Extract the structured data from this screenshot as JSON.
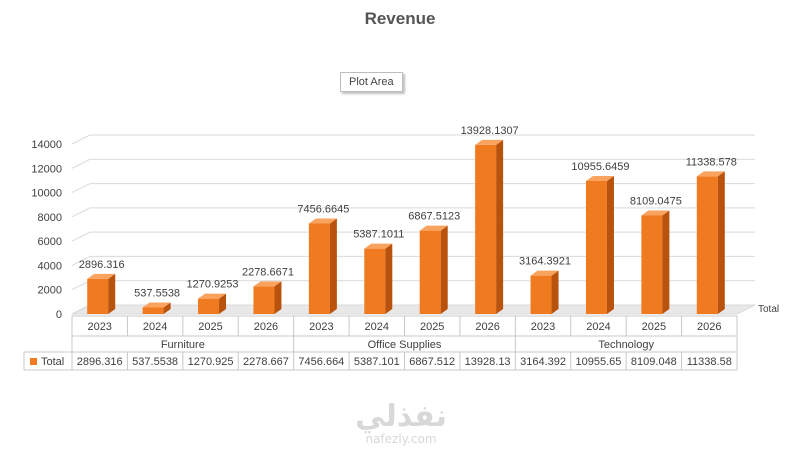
{
  "chart_data": {
    "type": "bar",
    "title": "Revenue",
    "tooltip": "Plot Area",
    "legend_label": "Total",
    "series_name": "Total",
    "ylim": [
      0,
      14000
    ],
    "yticks": [
      "0",
      "2000",
      "4000",
      "6000",
      "8000",
      "10000",
      "12000",
      "14000"
    ],
    "groups": [
      {
        "name": "Furniture",
        "years": [
          "2023",
          "2024",
          "2025",
          "2026"
        ],
        "values": [
          2896.316,
          537.5538,
          1270.9253,
          2278.6671
        ],
        "value_labels": [
          "2896.316",
          "537.5538",
          "1270.9253",
          "2278.6671"
        ],
        "table_values": [
          "2896.316",
          "537.5538",
          "1270.925",
          "2278.667"
        ]
      },
      {
        "name": "Office Supplies",
        "years": [
          "2023",
          "2024",
          "2025",
          "2026"
        ],
        "values": [
          7456.6645,
          5387.1011,
          6867.5123,
          13928.1307
        ],
        "value_labels": [
          "7456.6645",
          "5387.1011",
          "6867.5123",
          "13928.1307"
        ],
        "table_values": [
          "7456.664",
          "5387.101",
          "6867.512",
          "13928.13"
        ]
      },
      {
        "name": "Technology",
        "years": [
          "2023",
          "2024",
          "2025",
          "2026"
        ],
        "values": [
          3164.3921,
          10955.6459,
          8109.0475,
          11338.578
        ],
        "value_labels": [
          "3164.3921",
          "10955.6459",
          "8109.0475",
          "11338.578"
        ],
        "table_values": [
          "3164.392",
          "10955.65",
          "8109.048",
          "11338.58"
        ]
      }
    ],
    "grid": true,
    "colors": {
      "bar_front": "#f07a1f",
      "bar_side": "#b9520c",
      "bar_top": "#f9a35e",
      "grid": "#d9d9d9",
      "text": "#404040",
      "table_border": "#c8c8c8"
    }
  },
  "watermark": {
    "logo": "نفذلي",
    "url": "nafezly.com"
  }
}
